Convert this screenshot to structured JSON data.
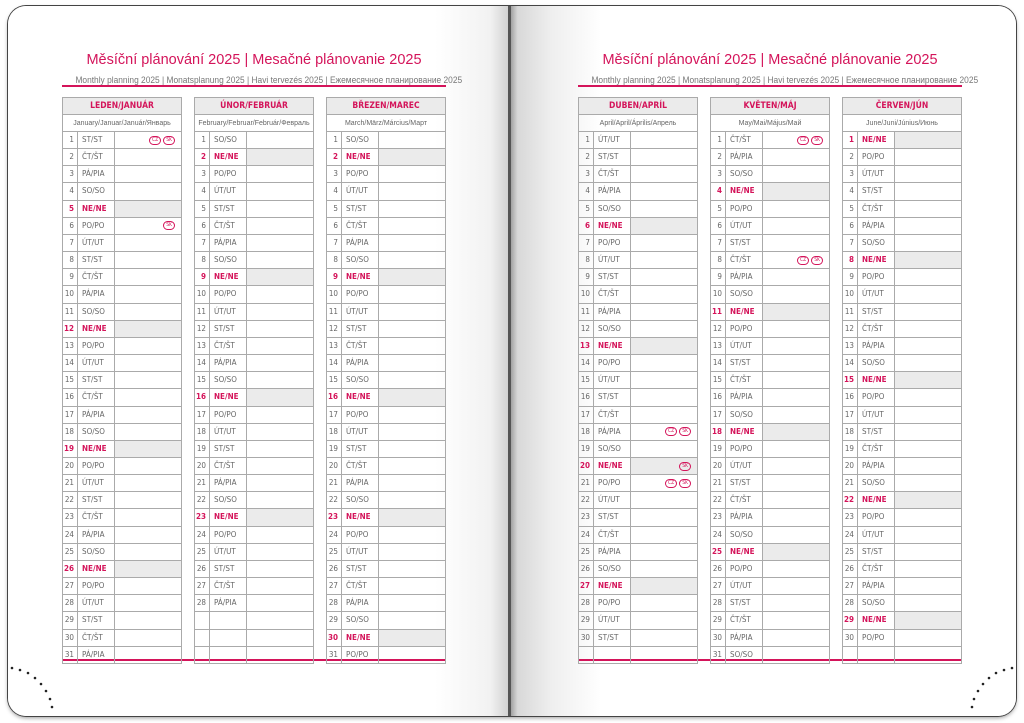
{
  "colors": {
    "accent": "#d4145a",
    "shade": "#ebebeb"
  },
  "pages": [
    {
      "title": "Měsíční plánování 2025 | Mesačné plánovanie 2025",
      "subtitle": "Monthly planning 2025 | Monatsplanung 2025 | Havi tervezés 2025 | Ежемесячное планирование 2025",
      "months": [
        {
          "name": "LEDEN/JANUÁR",
          "sub": "January/Januar/Január/Январь",
          "days": [
            [
              1,
              "ST/ST",
              [
                "CZ",
                "SK"
              ]
            ],
            [
              2,
              "ČT/ŠT"
            ],
            [
              3,
              "PÁ/PIA"
            ],
            [
              4,
              "SO/SO"
            ],
            [
              5,
              "NE/NE"
            ],
            [
              6,
              "PO/PO",
              [
                "SK"
              ]
            ],
            [
              7,
              "ÚT/UT"
            ],
            [
              8,
              "ST/ST"
            ],
            [
              9,
              "ČT/ŠT"
            ],
            [
              10,
              "PÁ/PIA"
            ],
            [
              11,
              "SO/SO"
            ],
            [
              12,
              "NE/NE"
            ],
            [
              13,
              "PO/PO"
            ],
            [
              14,
              "ÚT/UT"
            ],
            [
              15,
              "ST/ST"
            ],
            [
              16,
              "ČT/ŠT"
            ],
            [
              17,
              "PÁ/PIA"
            ],
            [
              18,
              "SO/SO"
            ],
            [
              19,
              "NE/NE"
            ],
            [
              20,
              "PO/PO"
            ],
            [
              21,
              "ÚT/UT"
            ],
            [
              22,
              "ST/ST"
            ],
            [
              23,
              "ČT/ŠT"
            ],
            [
              24,
              "PÁ/PIA"
            ],
            [
              25,
              "SO/SO"
            ],
            [
              26,
              "NE/NE"
            ],
            [
              27,
              "PO/PO"
            ],
            [
              28,
              "ÚT/UT"
            ],
            [
              29,
              "ST/ST"
            ],
            [
              30,
              "ČT/ŠT"
            ],
            [
              31,
              "PÁ/PIA"
            ]
          ]
        },
        {
          "name": "ÚNOR/FEBRUÁR",
          "sub": "February/Februar/Február/Февраль",
          "days": [
            [
              1,
              "SO/SO"
            ],
            [
              2,
              "NE/NE"
            ],
            [
              3,
              "PO/PO"
            ],
            [
              4,
              "ÚT/UT"
            ],
            [
              5,
              "ST/ST"
            ],
            [
              6,
              "ČT/ŠT"
            ],
            [
              7,
              "PÁ/PIA"
            ],
            [
              8,
              "SO/SO"
            ],
            [
              9,
              "NE/NE"
            ],
            [
              10,
              "PO/PO"
            ],
            [
              11,
              "ÚT/UT"
            ],
            [
              12,
              "ST/ST"
            ],
            [
              13,
              "ČT/ŠT"
            ],
            [
              14,
              "PÁ/PIA"
            ],
            [
              15,
              "SO/SO"
            ],
            [
              16,
              "NE/NE"
            ],
            [
              17,
              "PO/PO"
            ],
            [
              18,
              "ÚT/UT"
            ],
            [
              19,
              "ST/ST"
            ],
            [
              20,
              "ČT/ŠT"
            ],
            [
              21,
              "PÁ/PIA"
            ],
            [
              22,
              "SO/SO"
            ],
            [
              23,
              "NE/NE"
            ],
            [
              24,
              "PO/PO"
            ],
            [
              25,
              "ÚT/UT"
            ],
            [
              26,
              "ST/ST"
            ],
            [
              27,
              "ČT/ŠT"
            ],
            [
              28,
              "PÁ/PIA"
            ]
          ]
        },
        {
          "name": "BŘEZEN/MAREC",
          "sub": "March/März/Március/Март",
          "days": [
            [
              1,
              "SO/SO"
            ],
            [
              2,
              "NE/NE"
            ],
            [
              3,
              "PO/PO"
            ],
            [
              4,
              "ÚT/UT"
            ],
            [
              5,
              "ST/ST"
            ],
            [
              6,
              "ČT/ŠT"
            ],
            [
              7,
              "PÁ/PIA"
            ],
            [
              8,
              "SO/SO"
            ],
            [
              9,
              "NE/NE"
            ],
            [
              10,
              "PO/PO"
            ],
            [
              11,
              "ÚT/UT"
            ],
            [
              12,
              "ST/ST"
            ],
            [
              13,
              "ČT/ŠT"
            ],
            [
              14,
              "PÁ/PIA"
            ],
            [
              15,
              "SO/SO"
            ],
            [
              16,
              "NE/NE"
            ],
            [
              17,
              "PO/PO"
            ],
            [
              18,
              "ÚT/UT"
            ],
            [
              19,
              "ST/ST"
            ],
            [
              20,
              "ČT/ŠT"
            ],
            [
              21,
              "PÁ/PIA"
            ],
            [
              22,
              "SO/SO"
            ],
            [
              23,
              "NE/NE"
            ],
            [
              24,
              "PO/PO"
            ],
            [
              25,
              "ÚT/UT"
            ],
            [
              26,
              "ST/ST"
            ],
            [
              27,
              "ČT/ŠT"
            ],
            [
              28,
              "PÁ/PIA"
            ],
            [
              29,
              "SO/SO"
            ],
            [
              30,
              "NE/NE"
            ],
            [
              31,
              "PO/PO"
            ]
          ]
        }
      ]
    },
    {
      "title": "Měsíční plánování 2025 | Mesačné plánovanie 2025",
      "subtitle": "Monthly planning 2025 | Monatsplanung 2025 | Havi tervezés 2025 | Ежемесячное планирование 2025",
      "months": [
        {
          "name": "DUBEN/APRÍL",
          "sub": "April/April/Április/Апрель",
          "days": [
            [
              1,
              "ÚT/UT"
            ],
            [
              2,
              "ST/ST"
            ],
            [
              3,
              "ČT/ŠT"
            ],
            [
              4,
              "PÁ/PIA"
            ],
            [
              5,
              "SO/SO"
            ],
            [
              6,
              "NE/NE"
            ],
            [
              7,
              "PO/PO"
            ],
            [
              8,
              "ÚT/UT"
            ],
            [
              9,
              "ST/ST"
            ],
            [
              10,
              "ČT/ŠT"
            ],
            [
              11,
              "PÁ/PIA"
            ],
            [
              12,
              "SO/SO"
            ],
            [
              13,
              "NE/NE"
            ],
            [
              14,
              "PO/PO"
            ],
            [
              15,
              "ÚT/UT"
            ],
            [
              16,
              "ST/ST"
            ],
            [
              17,
              "ČT/ŠT"
            ],
            [
              18,
              "PÁ/PIA",
              [
                "CZ",
                "SK"
              ]
            ],
            [
              19,
              "SO/SO"
            ],
            [
              20,
              "NE/NE",
              [
                "SK"
              ]
            ],
            [
              21,
              "PO/PO",
              [
                "CZ",
                "SK"
              ]
            ],
            [
              22,
              "ÚT/UT"
            ],
            [
              23,
              "ST/ST"
            ],
            [
              24,
              "ČT/ŠT"
            ],
            [
              25,
              "PÁ/PIA"
            ],
            [
              26,
              "SO/SO"
            ],
            [
              27,
              "NE/NE"
            ],
            [
              28,
              "PO/PO"
            ],
            [
              29,
              "ÚT/UT"
            ],
            [
              30,
              "ST/ST"
            ]
          ]
        },
        {
          "name": "KVĚTEN/MÁJ",
          "sub": "May/Mai/Május/Май",
          "days": [
            [
              1,
              "ČT/ŠT",
              [
                "CZ",
                "SK"
              ]
            ],
            [
              2,
              "PÁ/PIA"
            ],
            [
              3,
              "SO/SO"
            ],
            [
              4,
              "NE/NE"
            ],
            [
              5,
              "PO/PO"
            ],
            [
              6,
              "ÚT/UT"
            ],
            [
              7,
              "ST/ST"
            ],
            [
              8,
              "ČT/ŠT",
              [
                "CZ",
                "SK"
              ]
            ],
            [
              9,
              "PÁ/PIA"
            ],
            [
              10,
              "SO/SO"
            ],
            [
              11,
              "NE/NE"
            ],
            [
              12,
              "PO/PO"
            ],
            [
              13,
              "ÚT/UT"
            ],
            [
              14,
              "ST/ST"
            ],
            [
              15,
              "ČT/ŠT"
            ],
            [
              16,
              "PÁ/PIA"
            ],
            [
              17,
              "SO/SO"
            ],
            [
              18,
              "NE/NE"
            ],
            [
              19,
              "PO/PO"
            ],
            [
              20,
              "ÚT/UT"
            ],
            [
              21,
              "ST/ST"
            ],
            [
              22,
              "ČT/ŠT"
            ],
            [
              23,
              "PÁ/PIA"
            ],
            [
              24,
              "SO/SO"
            ],
            [
              25,
              "NE/NE"
            ],
            [
              26,
              "PO/PO"
            ],
            [
              27,
              "ÚT/UT"
            ],
            [
              28,
              "ST/ST"
            ],
            [
              29,
              "ČT/ŠT"
            ],
            [
              30,
              "PÁ/PIA"
            ],
            [
              31,
              "SO/SO"
            ]
          ]
        },
        {
          "name": "ČERVEN/JÚN",
          "sub": "June/Juni/Június/Июнь",
          "days": [
            [
              1,
              "NE/NE"
            ],
            [
              2,
              "PO/PO"
            ],
            [
              3,
              "ÚT/UT"
            ],
            [
              4,
              "ST/ST"
            ],
            [
              5,
              "ČT/ŠT"
            ],
            [
              6,
              "PÁ/PIA"
            ],
            [
              7,
              "SO/SO"
            ],
            [
              8,
              "NE/NE"
            ],
            [
              9,
              "PO/PO"
            ],
            [
              10,
              "ÚT/UT"
            ],
            [
              11,
              "ST/ST"
            ],
            [
              12,
              "ČT/ŠT"
            ],
            [
              13,
              "PÁ/PIA"
            ],
            [
              14,
              "SO/SO"
            ],
            [
              15,
              "NE/NE"
            ],
            [
              16,
              "PO/PO"
            ],
            [
              17,
              "ÚT/UT"
            ],
            [
              18,
              "ST/ST"
            ],
            [
              19,
              "ČT/ŠT"
            ],
            [
              20,
              "PÁ/PIA"
            ],
            [
              21,
              "SO/SO"
            ],
            [
              22,
              "NE/NE"
            ],
            [
              23,
              "PO/PO"
            ],
            [
              24,
              "ÚT/UT"
            ],
            [
              25,
              "ST/ST"
            ],
            [
              26,
              "ČT/ŠT"
            ],
            [
              27,
              "PÁ/PIA"
            ],
            [
              28,
              "SO/SO"
            ],
            [
              29,
              "NE/NE"
            ],
            [
              30,
              "PO/PO"
            ]
          ]
        }
      ]
    }
  ]
}
